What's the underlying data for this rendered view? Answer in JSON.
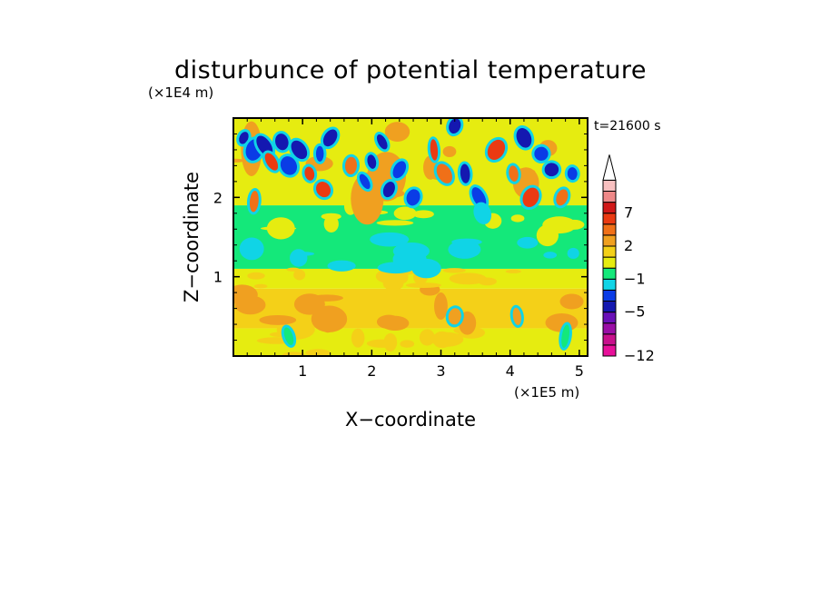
{
  "chart_data": {
    "type": "heatmap",
    "title": "disturbunce of potential temperature",
    "xlabel": "X−coordinate",
    "ylabel": "Z−coordinate",
    "x_scale_label": "(×1E5 m)",
    "y_scale_label": "(×1E4 m)",
    "time_label": "t=21600 s",
    "xlim": [
      0,
      5.12
    ],
    "ylim": [
      0,
      3.0
    ],
    "x_ticks": [
      {
        "value": 1,
        "label": "1"
      },
      {
        "value": 2,
        "label": "2"
      },
      {
        "value": 3,
        "label": "3"
      },
      {
        "value": 4,
        "label": "4"
      },
      {
        "value": 5,
        "label": "5"
      }
    ],
    "y_ticks": [
      {
        "value": 1,
        "label": "1"
      },
      {
        "value": 2,
        "label": "2"
      }
    ],
    "x_minor_step": 0.2,
    "y_minor_step": 0.2,
    "colorbar": {
      "colors": [
        "#e8109a",
        "#c8108c",
        "#9a0ea6",
        "#6a10b8",
        "#1418b0",
        "#0a3ce6",
        "#10d4e6",
        "#14e87a",
        "#e6ec10",
        "#f4d018",
        "#f0a020",
        "#f07018",
        "#ea3a12",
        "#d01818",
        "#ee8888",
        "#f8c0c0"
      ],
      "arrow_color": "#ffffff",
      "labels": [
        {
          "index": 0,
          "label": "−12"
        },
        {
          "index": 4,
          "label": "−5"
        },
        {
          "index": 7,
          "label": "−1"
        },
        {
          "index": 10,
          "label": "2"
        },
        {
          "index": 13,
          "label": "7"
        }
      ]
    },
    "bands": [
      {
        "z": [
          0.0,
          0.35
        ],
        "dominant_color": "#e6ec10",
        "patch_color": "#f4d018"
      },
      {
        "z": [
          0.35,
          0.85
        ],
        "dominant_color": "#f4d018",
        "patch_color": "#f0a020"
      },
      {
        "z": [
          0.85,
          1.1
        ],
        "dominant_color": "#e6ec10",
        "patch_color": "#f4d018"
      },
      {
        "z": [
          1.1,
          1.5
        ],
        "dominant_color": "#14e87a",
        "patch_color": "#10d4e6"
      },
      {
        "z": [
          1.5,
          1.9
        ],
        "dominant_color": "#14e87a",
        "patch_color": "#e6ec10"
      },
      {
        "z": [
          1.9,
          3.0
        ],
        "dominant_color": "#e6ec10",
        "patch_color": "#f0a020"
      }
    ],
    "features": [
      {
        "x": 0.15,
        "z": 2.75,
        "color": "#1418b0"
      },
      {
        "x": 0.3,
        "z": 2.6,
        "color": "#0a3ce6"
      },
      {
        "x": 0.45,
        "z": 2.65,
        "color": "#1418b0"
      },
      {
        "x": 0.55,
        "z": 2.45,
        "color": "#ea3a12"
      },
      {
        "x": 0.7,
        "z": 2.7,
        "color": "#1418b0"
      },
      {
        "x": 0.8,
        "z": 2.4,
        "color": "#0a3ce6"
      },
      {
        "x": 0.95,
        "z": 2.6,
        "color": "#1418b0"
      },
      {
        "x": 1.1,
        "z": 2.3,
        "color": "#ea3a12"
      },
      {
        "x": 1.25,
        "z": 2.55,
        "color": "#0a3ce6"
      },
      {
        "x": 1.4,
        "z": 2.75,
        "color": "#1418b0"
      },
      {
        "x": 1.9,
        "z": 2.2,
        "color": "#0a3ce6"
      },
      {
        "x": 2.0,
        "z": 2.45,
        "color": "#1418b0"
      },
      {
        "x": 2.15,
        "z": 2.7,
        "color": "#1418b0"
      },
      {
        "x": 2.25,
        "z": 2.1,
        "color": "#1418b0"
      },
      {
        "x": 2.4,
        "z": 2.35,
        "color": "#0a3ce6"
      },
      {
        "x": 2.6,
        "z": 2.0,
        "color": "#0a3ce6"
      },
      {
        "x": 3.2,
        "z": 2.9,
        "color": "#1418b0"
      },
      {
        "x": 3.35,
        "z": 2.3,
        "color": "#1418b0"
      },
      {
        "x": 3.55,
        "z": 2.0,
        "color": "#0a3ce6"
      },
      {
        "x": 3.6,
        "z": 1.8,
        "color": "#10d4e6"
      },
      {
        "x": 4.2,
        "z": 2.75,
        "color": "#1418b0"
      },
      {
        "x": 4.45,
        "z": 2.55,
        "color": "#0a3ce6"
      },
      {
        "x": 4.6,
        "z": 2.35,
        "color": "#1418b0"
      },
      {
        "x": 4.9,
        "z": 2.3,
        "color": "#0a3ce6"
      },
      {
        "x": 1.3,
        "z": 2.1,
        "color": "#ea3a12"
      },
      {
        "x": 1.7,
        "z": 2.4,
        "color": "#f07018"
      },
      {
        "x": 2.9,
        "z": 2.6,
        "color": "#ea3a12"
      },
      {
        "x": 3.05,
        "z": 2.3,
        "color": "#f07018"
      },
      {
        "x": 3.8,
        "z": 2.6,
        "color": "#ea3a12"
      },
      {
        "x": 4.05,
        "z": 2.3,
        "color": "#f07018"
      },
      {
        "x": 4.3,
        "z": 2.0,
        "color": "#ea3a12"
      },
      {
        "x": 4.75,
        "z": 2.0,
        "color": "#f07018"
      },
      {
        "x": 0.3,
        "z": 1.95,
        "color": "#f07018"
      },
      {
        "x": 3.2,
        "z": 0.5,
        "color": "#f0a020"
      },
      {
        "x": 4.1,
        "z": 0.5,
        "color": "#f0a020"
      },
      {
        "x": 0.8,
        "z": 0.25,
        "color": "#14e87a"
      },
      {
        "x": 4.8,
        "z": 0.25,
        "color": "#14e87a"
      }
    ]
  }
}
